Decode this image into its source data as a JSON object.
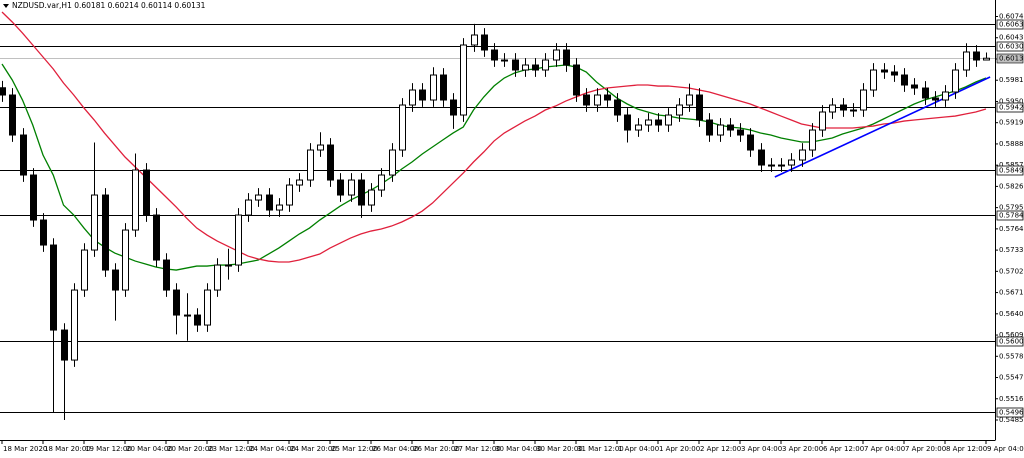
{
  "chart_data": {
    "type": "candlestick",
    "title": "NZDUSD.var,H1  0.60181 0.60214 0.60114 0.60131",
    "ylim": [
      0.54558,
      0.60981
    ],
    "yticks": [
      {
        "value": 0.6074,
        "label": "0.60740"
      },
      {
        "value": 0.6043,
        "label": "0.60430"
      },
      {
        "value": 0.6012,
        "label": "0.60120"
      },
      {
        "value": 0.5981,
        "label": "0.59810"
      },
      {
        "value": 0.595,
        "label": "0.59500"
      },
      {
        "value": 0.5919,
        "label": "0.59190"
      },
      {
        "value": 0.5888,
        "label": "0.58880"
      },
      {
        "value": 0.5857,
        "label": "0.58570"
      },
      {
        "value": 0.5826,
        "label": "0.58260"
      },
      {
        "value": 0.5795,
        "label": "0.57950"
      },
      {
        "value": 0.5764,
        "label": "0.57640"
      },
      {
        "value": 0.5733,
        "label": "0.57330"
      },
      {
        "value": 0.5702,
        "label": "0.57020"
      },
      {
        "value": 0.5671,
        "label": "0.56710"
      },
      {
        "value": 0.564,
        "label": "0.56400"
      },
      {
        "value": 0.5609,
        "label": "0.56090"
      },
      {
        "value": 0.5578,
        "label": "0.55780"
      },
      {
        "value": 0.5547,
        "label": "0.55470"
      },
      {
        "value": 0.5516,
        "label": "0.55160"
      },
      {
        "value": 0.5485,
        "label": "0.54850"
      }
    ],
    "categories": [
      "18 Mar 2020",
      null,
      null,
      null,
      "18 Mar 20:00",
      null,
      null,
      null,
      "19 Mar 12:00",
      null,
      null,
      null,
      "20 Mar 04:00",
      null,
      null,
      null,
      "20 Mar 20:00",
      null,
      null,
      null,
      "23 Mar 12:00",
      null,
      null,
      null,
      "24 Mar 04:00",
      null,
      null,
      null,
      "24 Mar 20:00",
      null,
      null,
      null,
      "25 Mar 12:00",
      null,
      null,
      null,
      "26 Mar 04:00",
      null,
      null,
      null,
      "26 Mar 20:00",
      null,
      null,
      null,
      "27 Mar 12:00",
      null,
      null,
      null,
      "30 Mar 04:00",
      null,
      null,
      null,
      "30 Mar 20:00",
      null,
      null,
      null,
      "31 Mar 12:00",
      null,
      null,
      null,
      "1 Apr 04:00",
      null,
      null,
      null,
      "1 Apr 20:00",
      null,
      null,
      null,
      "2 Apr 12:00",
      null,
      null,
      null,
      "3 Apr 04:00",
      null,
      null,
      null,
      "3 Apr 20:00",
      null,
      null,
      null,
      "6 Apr 12:00",
      null,
      null,
      null,
      "7 Apr 04:00",
      null,
      null,
      null,
      "7 Apr 20:00",
      null,
      null,
      null,
      "8 Apr 12:00",
      null,
      null,
      null,
      "9 Apr 04:00"
    ],
    "candle_color": "#000000",
    "open": [
      0.597,
      0.59594,
      0.5901,
      0.58426,
      0.57769,
      0.57404,
      0.56163,
      0.55725,
      0.56747,
      0.57331,
      0.58134,
      0.57039,
      0.56747,
      0.57623,
      0.58499,
      0.57842,
      0.57185,
      0.56747,
      0.56382,
      0.56382,
      0.56236,
      0.56747,
      0.57112,
      0.57112,
      0.57842,
      0.58061,
      0.58134,
      0.57915,
      0.57988,
      0.5828,
      0.58353,
      0.58791,
      0.58864,
      0.58353,
      0.58134,
      0.58353,
      0.57988,
      0.58207,
      0.58426,
      0.58791,
      0.59448,
      0.59667,
      0.59521,
      0.59886,
      0.59521,
      0.59302,
      0.60324,
      0.6047,
      0.60251,
      0.60105,
      0.60105,
      0.59959,
      0.60032,
      0.59959,
      0.60105,
      0.60251,
      0.60032,
      0.59594,
      0.59448,
      0.59594,
      0.59521,
      0.59302,
      0.59083,
      0.59156,
      0.59229,
      0.59156,
      0.59302,
      0.59448,
      0.59594,
      0.59229,
      0.5901,
      0.59156,
      0.59083,
      0.5901,
      0.58791,
      0.58572,
      0.58572,
      0.58572,
      0.58645,
      0.58791,
      0.59083,
      0.59346,
      0.59448,
      0.59375,
      0.59375,
      0.59667,
      0.59959,
      0.5993,
      0.59886,
      0.5974,
      0.59696,
      0.5955,
      0.59521,
      0.59638,
      0.59959,
      0.60222,
      0.60105
    ],
    "high": [
      0.598,
      0.59694,
      0.5911,
      0.58526,
      0.57869,
      0.57504,
      0.56263,
      0.56847,
      0.57431,
      0.589,
      0.58234,
      0.57139,
      0.57723,
      0.5874,
      0.58599,
      0.57942,
      0.57285,
      0.56847,
      0.567,
      0.56482,
      0.56847,
      0.57212,
      0.5735,
      0.57942,
      0.58161,
      0.58234,
      0.58234,
      0.58088,
      0.5838,
      0.58453,
      0.58891,
      0.5905,
      0.58964,
      0.58453,
      0.58453,
      0.58453,
      0.58307,
      0.58526,
      0.58891,
      0.59548,
      0.59767,
      0.59767,
      0.6,
      0.59986,
      0.59621,
      0.60424,
      0.60633,
      0.6057,
      0.60351,
      0.60205,
      0.60205,
      0.60132,
      0.60132,
      0.60205,
      0.60351,
      0.60351,
      0.60132,
      0.59694,
      0.59694,
      0.59694,
      0.59621,
      0.59402,
      0.59256,
      0.59329,
      0.59329,
      0.59402,
      0.59548,
      0.5976,
      0.59694,
      0.59329,
      0.59256,
      0.59256,
      0.59183,
      0.5911,
      0.58891,
      0.58672,
      0.58672,
      0.58745,
      0.58891,
      0.59183,
      0.59446,
      0.59548,
      0.59548,
      0.59475,
      0.59767,
      0.60059,
      0.60059,
      0.6003,
      0.59986,
      0.5984,
      0.59796,
      0.5965,
      0.59738,
      0.60059,
      0.6035,
      0.60322,
      0.60214
    ],
    "low": [
      0.59494,
      0.5891,
      0.58326,
      0.57669,
      0.57304,
      0.54962,
      0.5485,
      0.55625,
      0.56647,
      0.57231,
      0.56939,
      0.563,
      0.56647,
      0.57523,
      0.57742,
      0.57085,
      0.56647,
      0.561,
      0.56006,
      0.56136,
      0.56136,
      0.56647,
      0.569,
      0.57012,
      0.57742,
      0.57961,
      0.57815,
      0.57815,
      0.57888,
      0.5818,
      0.58253,
      0.58691,
      0.58253,
      0.58034,
      0.58034,
      0.578,
      0.57888,
      0.58107,
      0.58326,
      0.58691,
      0.59348,
      0.59421,
      0.59421,
      0.59421,
      0.591,
      0.59202,
      0.60224,
      0.60151,
      0.60005,
      0.60005,
      0.59859,
      0.59859,
      0.59859,
      0.59859,
      0.60005,
      0.59932,
      0.59494,
      0.59348,
      0.59348,
      0.59421,
      0.59202,
      0.589,
      0.58983,
      0.59056,
      0.59056,
      0.59056,
      0.59202,
      0.59348,
      0.59129,
      0.5891,
      0.5891,
      0.58983,
      0.5891,
      0.58691,
      0.58472,
      0.58472,
      0.58472,
      0.58472,
      0.58545,
      0.58691,
      0.58983,
      0.59246,
      0.59275,
      0.59275,
      0.59275,
      0.59567,
      0.5983,
      0.59786,
      0.5964,
      0.59596,
      0.5945,
      0.59421,
      0.59421,
      0.59538,
      0.59859,
      0.60005,
      0.60114
    ],
    "close": [
      0.59594,
      0.5901,
      0.58426,
      0.57769,
      0.57404,
      0.56163,
      0.55725,
      0.56747,
      0.57331,
      0.58134,
      0.57039,
      0.56747,
      0.57623,
      0.58499,
      0.57842,
      0.57185,
      0.56747,
      0.56382,
      0.56382,
      0.56236,
      0.56747,
      0.57112,
      0.57112,
      0.57842,
      0.58061,
      0.58134,
      0.57915,
      0.57988,
      0.5828,
      0.58353,
      0.58791,
      0.58864,
      0.58353,
      0.58134,
      0.58353,
      0.57988,
      0.58207,
      0.58426,
      0.58791,
      0.59448,
      0.59667,
      0.59521,
      0.59886,
      0.59521,
      0.59302,
      0.60324,
      0.6047,
      0.60251,
      0.60105,
      0.60105,
      0.59959,
      0.60032,
      0.59959,
      0.60105,
      0.60251,
      0.60032,
      0.59594,
      0.59448,
      0.59594,
      0.59521,
      0.59302,
      0.59083,
      0.59156,
      0.59229,
      0.59156,
      0.59302,
      0.59448,
      0.59594,
      0.59229,
      0.5901,
      0.59156,
      0.59083,
      0.5901,
      0.58791,
      0.58572,
      0.58572,
      0.58572,
      0.58645,
      0.58791,
      0.59083,
      0.59346,
      0.59448,
      0.59375,
      0.59375,
      0.59667,
      0.59959,
      0.5993,
      0.59886,
      0.5974,
      0.59696,
      0.5955,
      0.59521,
      0.59638,
      0.59959,
      0.60222,
      0.60105,
      0.60131
    ],
    "series": [
      {
        "color": "#008000",
        "values": [
          0.60047,
          0.59813,
          0.59521,
          0.59156,
          0.58718,
          0.58426,
          0.57988,
          0.57842,
          0.57652,
          0.57477,
          0.57375,
          0.57287,
          0.57229,
          0.5717,
          0.57127,
          0.57083,
          0.57054,
          0.57039,
          0.57068,
          0.57097,
          0.57097,
          0.57112,
          0.57112,
          0.57127,
          0.57156,
          0.57185,
          0.57273,
          0.5736,
          0.57462,
          0.57565,
          0.57652,
          0.57769,
          0.57871,
          0.57973,
          0.58061,
          0.58134,
          0.58207,
          0.58295,
          0.58397,
          0.58514,
          0.58616,
          0.58733,
          0.58835,
          0.58937,
          0.59039,
          0.59127,
          0.59375,
          0.59565,
          0.59725,
          0.59842,
          0.59915,
          0.59959,
          0.59974,
          0.60003,
          0.60017,
          0.60032,
          0.60003,
          0.5993,
          0.59784,
          0.59667,
          0.5955,
          0.59463,
          0.5939,
          0.59346,
          0.59302,
          0.59287,
          0.59258,
          0.59244,
          0.59229,
          0.592,
          0.59156,
          0.59127,
          0.59112,
          0.59083,
          0.59039,
          0.5901,
          0.58966,
          0.58937,
          0.58908,
          0.58908,
          0.58937,
          0.58966,
          0.59025,
          0.59068,
          0.59112,
          0.59171,
          0.59244,
          0.59317,
          0.5939,
          0.59463,
          0.59521,
          0.59565,
          0.59609,
          0.59652,
          0.59711,
          0.59784,
          0.59842
        ]
      },
      {
        "color": "#e0203c",
        "values": [
          0.60806,
          0.6066,
          0.60499,
          0.60324,
          0.60149,
          0.59974,
          0.59769,
          0.59594,
          0.59404,
          0.59229,
          0.59039,
          0.58864,
          0.58689,
          0.58543,
          0.58397,
          0.58251,
          0.58105,
          0.57959,
          0.57798,
          0.57652,
          0.5755,
          0.57462,
          0.57389,
          0.57316,
          0.57243,
          0.572,
          0.5717,
          0.57156,
          0.57156,
          0.57185,
          0.57229,
          0.57273,
          0.5736,
          0.57433,
          0.57506,
          0.57565,
          0.57608,
          0.57638,
          0.57681,
          0.5774,
          0.57813,
          0.579,
          0.58017,
          0.58163,
          0.58309,
          0.58455,
          0.58616,
          0.58762,
          0.58922,
          0.59039,
          0.59127,
          0.59214,
          0.59287,
          0.59375,
          0.59433,
          0.59506,
          0.59565,
          0.59623,
          0.59667,
          0.59696,
          0.59711,
          0.59725,
          0.5974,
          0.5974,
          0.59725,
          0.59725,
          0.59711,
          0.59696,
          0.59667,
          0.59638,
          0.59594,
          0.5955,
          0.59506,
          0.59463,
          0.59404,
          0.59346,
          0.59287,
          0.59229,
          0.59171,
          0.59141,
          0.59112,
          0.59112,
          0.59112,
          0.59112,
          0.59127,
          0.59141,
          0.59171,
          0.59185,
          0.59214,
          0.59229,
          0.59244,
          0.59258,
          0.59273,
          0.59287,
          0.59317,
          0.59346,
          0.5939
        ]
      }
    ],
    "trendline": {
      "color": "#0000ff",
      "x": [
        75.4,
        96.4
      ],
      "values": [
        0.58397,
        0.59857
      ]
    },
    "levels": [
      0.60633,
      0.60309,
      0.59424,
      0.58499,
      0.57848,
      0.56006,
      0.54962
    ],
    "current_price": 0.60131
  }
}
